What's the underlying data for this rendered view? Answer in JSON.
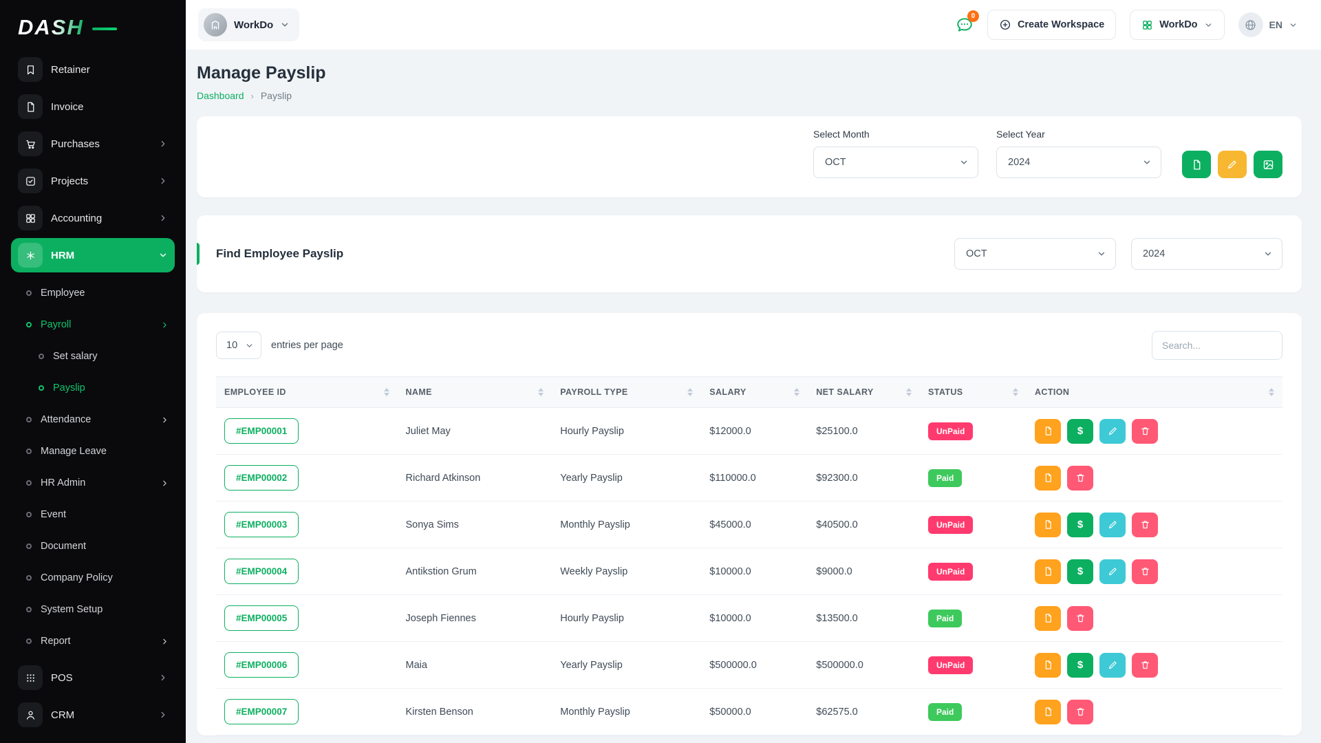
{
  "brand": {
    "logo_text": "DASH"
  },
  "topbar": {
    "workspace_name": "WorkDo",
    "messages_badge": "0",
    "create_workspace_label": "Create Workspace",
    "workdo_label": "WorkDo",
    "language": "EN"
  },
  "page": {
    "title": "Manage Payslip",
    "breadcrumb_home": "Dashboard",
    "breadcrumb_current": "Payslip"
  },
  "filters": {
    "month_label": "Select Month",
    "year_label": "Select Year",
    "month_value": "OCT",
    "year_value": "2024"
  },
  "find": {
    "title": "Find Employee Payslip",
    "month_value": "OCT",
    "year_value": "2024"
  },
  "table": {
    "entries_value": "10",
    "entries_label": "entries per page",
    "search_placeholder": "Search...",
    "columns": [
      "EMPLOYEE ID",
      "NAME",
      "PAYROLL TYPE",
      "SALARY",
      "NET SALARY",
      "STATUS",
      "ACTION"
    ],
    "rows": [
      {
        "id": "#EMP00001",
        "name": "Juliet May",
        "payroll_type": "Hourly Payslip",
        "salary": "$12000.0",
        "net_salary": "$25100.0",
        "status": "UnPaid",
        "actions": [
          "payslip",
          "pay",
          "edit",
          "delete"
        ]
      },
      {
        "id": "#EMP00002",
        "name": "Richard Atkinson",
        "payroll_type": "Yearly Payslip",
        "salary": "$110000.0",
        "net_salary": "$92300.0",
        "status": "Paid",
        "actions": [
          "payslip",
          "delete"
        ]
      },
      {
        "id": "#EMP00003",
        "name": "Sonya Sims",
        "payroll_type": "Monthly Payslip",
        "salary": "$45000.0",
        "net_salary": "$40500.0",
        "status": "UnPaid",
        "actions": [
          "payslip",
          "pay",
          "edit",
          "delete"
        ]
      },
      {
        "id": "#EMP00004",
        "name": "Antikstion Grum",
        "payroll_type": "Weekly Payslip",
        "salary": "$10000.0",
        "net_salary": "$9000.0",
        "status": "UnPaid",
        "actions": [
          "payslip",
          "pay",
          "edit",
          "delete"
        ]
      },
      {
        "id": "#EMP00005",
        "name": "Joseph Fiennes",
        "payroll_type": "Hourly Payslip",
        "salary": "$10000.0",
        "net_salary": "$13500.0",
        "status": "Paid",
        "actions": [
          "payslip",
          "delete"
        ]
      },
      {
        "id": "#EMP00006",
        "name": "Maia",
        "payroll_type": "Yearly Payslip",
        "salary": "$500000.0",
        "net_salary": "$500000.0",
        "status": "UnPaid",
        "actions": [
          "payslip",
          "pay",
          "edit",
          "delete"
        ]
      },
      {
        "id": "#EMP00007",
        "name": "Kirsten Benson",
        "payroll_type": "Monthly Payslip",
        "salary": "$50000.0",
        "net_salary": "$62575.0",
        "status": "Paid",
        "actions": [
          "payslip",
          "delete"
        ]
      }
    ]
  },
  "sidebar": {
    "items": [
      {
        "label": "Retainer",
        "icon": "retainer-icon",
        "iconKey": "bookmark"
      },
      {
        "label": "Invoice",
        "icon": "invoice-icon",
        "iconKey": "doc"
      },
      {
        "label": "Purchases",
        "icon": "purchases-icon",
        "iconKey": "cart",
        "chevron": true
      },
      {
        "label": "Projects",
        "icon": "projects-icon",
        "iconKey": "checkSquare",
        "chevron": true
      },
      {
        "label": "Accounting",
        "icon": "accounting-icon",
        "iconKey": "grid4",
        "chevron": true
      },
      {
        "label": "HRM",
        "icon": "hrm-icon",
        "iconKey": "asterisk",
        "chevron": true,
        "active": true,
        "expanded": true,
        "children": [
          {
            "label": "Employee"
          },
          {
            "label": "Payroll",
            "chevron": true,
            "active": true,
            "children": [
              {
                "label": "Set salary"
              },
              {
                "label": "Payslip",
                "active": true
              }
            ]
          },
          {
            "label": "Attendance",
            "chevron": true
          },
          {
            "label": "Manage Leave"
          },
          {
            "label": "HR Admin",
            "chevron": true
          },
          {
            "label": "Event"
          },
          {
            "label": "Document"
          },
          {
            "label": "Company Policy"
          },
          {
            "label": "System Setup"
          },
          {
            "label": "Report",
            "chevron": true
          }
        ]
      },
      {
        "label": "POS",
        "icon": "pos-icon",
        "iconKey": "dots9",
        "chevron": true
      },
      {
        "label": "CRM",
        "icon": "crm-icon",
        "iconKey": "person",
        "chevron": true
      }
    ]
  },
  "colors": {
    "primary_green": "#0caf60",
    "unpaid_badge": "#ff3a6e",
    "paid_badge": "#3ec95c",
    "action_orange": "#ffa21d",
    "action_cyan": "#3ec9d6",
    "action_red": "#ff5976",
    "chat_badge": "#fd7014",
    "sidebar_bg": "#0a0a0c"
  }
}
